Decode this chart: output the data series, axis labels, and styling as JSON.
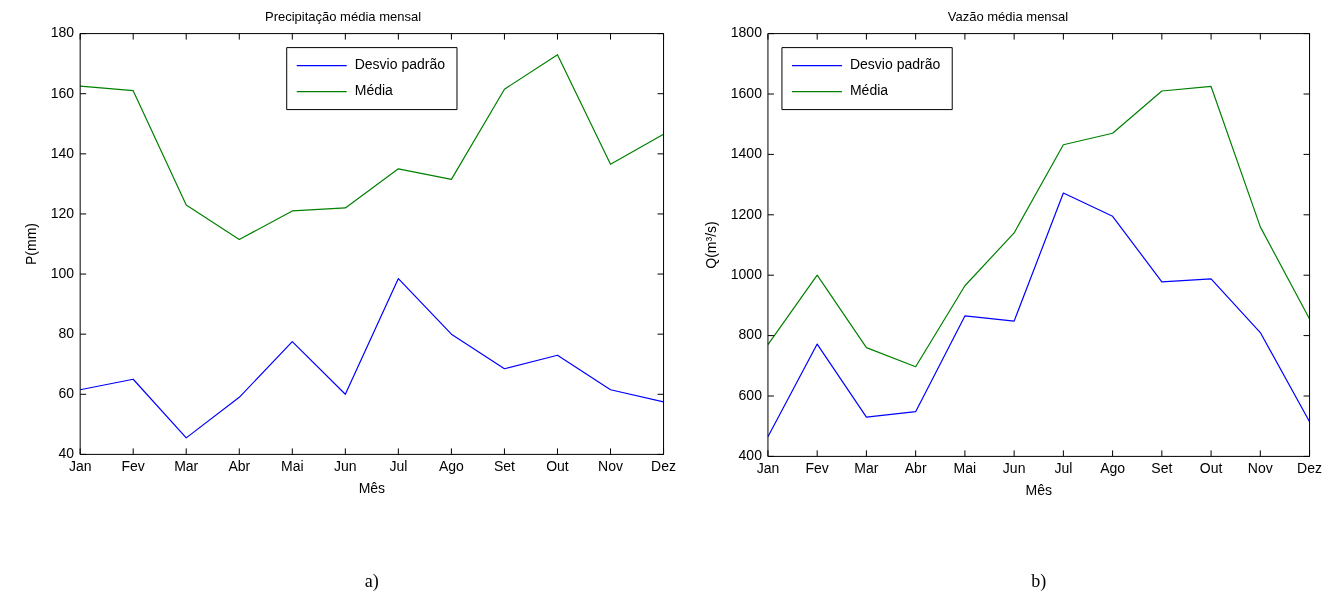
{
  "chart_data": [
    {
      "type": "line",
      "title": "Precipitação média mensal",
      "xlabel": "Mês",
      "ylabel": "P(mm)",
      "categories": [
        "Jan",
        "Fev",
        "Mar",
        "Abr",
        "Mai",
        "Jun",
        "Jul",
        "Ago",
        "Set",
        "Out",
        "Nov",
        "Dez"
      ],
      "series": [
        {
          "name": "Desvio padrão",
          "color": "#0000ff",
          "values": [
            61.5,
            65,
            45.5,
            59,
            77.5,
            60,
            98.5,
            80,
            68.5,
            73,
            61.5,
            57.5
          ]
        },
        {
          "name": "Média",
          "color": "#008000",
          "values": [
            162.5,
            161,
            123,
            111.5,
            121,
            122,
            135,
            131.5,
            161.5,
            173,
            136.5,
            146.5
          ]
        }
      ],
      "ylim": [
        40,
        180
      ],
      "yticks": [
        40,
        60,
        80,
        100,
        120,
        140,
        160,
        180
      ],
      "grid": false,
      "legend": "top",
      "marker": "none",
      "line_style": "solid",
      "annotations": [
        "a)"
      ]
    },
    {
      "type": "line",
      "title": "Vazão média mensal",
      "xlabel": "Mês",
      "ylabel": "Q(m³/s)",
      "categories": [
        "Jan",
        "Fev",
        "Mar",
        "Abr",
        "Mai",
        "Jun",
        "Jul",
        "Ago",
        "Set",
        "Out",
        "Nov",
        "Dez"
      ],
      "series": [
        {
          "name": "Desvio padrão",
          "color": "#0000ff",
          "values": [
            465,
            772,
            530,
            548,
            865,
            848,
            1272,
            1195,
            978,
            988,
            810,
            515
          ]
        },
        {
          "name": "Média",
          "color": "#008000",
          "values": [
            770,
            1000,
            760,
            697,
            965,
            1140,
            1432,
            1470,
            1610,
            1625,
            1160,
            855
          ]
        }
      ],
      "ylim": [
        400,
        1800
      ],
      "yticks": [
        400,
        600,
        800,
        1000,
        1200,
        1400,
        1600,
        1800
      ],
      "grid": false,
      "legend": "top left",
      "marker": "none",
      "line_style": "solid",
      "annotations": [
        "b)"
      ]
    }
  ]
}
